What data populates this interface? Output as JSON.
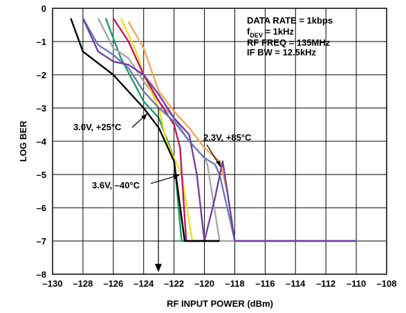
{
  "chart_data": {
    "type": "line",
    "xlabel": "RF INPUT POWER (dBm)",
    "ylabel": "LOG BER",
    "xlim": [
      -130,
      -108
    ],
    "ylim": [
      -8,
      0
    ],
    "x_ticks": [
      "–130",
      "–128",
      "–126",
      "–124",
      "–122",
      "–120",
      "–118",
      "–116",
      "–114",
      "–112",
      "–110",
      "–108"
    ],
    "y_ticks": [
      "0",
      "–1",
      "–2",
      "–3",
      "–4",
      "–5",
      "–6",
      "–7",
      "–8"
    ],
    "grid": true,
    "info_box": {
      "line1": "DATA RATE = 1kbps",
      "line2_main": "f",
      "line2_sub": "DEV",
      "line2_rest": " = 1kHz",
      "line3": "RF FREQ = 135MHz",
      "line4": "IF BW = 12.5kHz"
    },
    "annotations": [
      {
        "text": "3.0V, +25°C"
      },
      {
        "text": "2.3V, +85°C"
      },
      {
        "text": "3.6V, –40°C"
      }
    ],
    "series": [
      {
        "color": "#1a9a6a",
        "x": [
          -126.5,
          -125.5,
          -124,
          -123,
          -122,
          -121.5,
          -120
        ],
        "y": [
          -0.3,
          -1.5,
          -2.8,
          -3.3,
          -4.5,
          -7,
          -7
        ]
      },
      {
        "color": "#f4a460",
        "x": [
          -125,
          -124,
          -123,
          -122,
          -121,
          -120,
          -119,
          -118.5,
          -118
        ],
        "y": [
          -0.4,
          -1.2,
          -2.5,
          -3.1,
          -3.6,
          -4.2,
          -4.6,
          -5.5,
          -7
        ]
      },
      {
        "color": "#a8a8a8",
        "x": [
          -127,
          -126,
          -125,
          -124,
          -123,
          -122,
          -121,
          -120,
          -119.8,
          -119,
          -118,
          -110
        ],
        "y": [
          -0.3,
          -1.2,
          -1.5,
          -2.2,
          -2.8,
          -3.3,
          -4.0,
          -4.5,
          -4.7,
          -7,
          -7,
          -7
        ]
      },
      {
        "color": "#f0e020",
        "x": [
          -125.5,
          -124.5,
          -124,
          -123.5,
          -123,
          -122.5,
          -121.5,
          -120.8
        ],
        "y": [
          -0.3,
          -1.3,
          -2.0,
          -2.5,
          -3.0,
          -4.0,
          -5.0,
          -7
        ]
      },
      {
        "color": "#c0185a",
        "x": [
          -126,
          -125,
          -124,
          -123,
          -122,
          -121.6,
          -121.2,
          -119
        ],
        "y": [
          -0.3,
          -1.0,
          -2.0,
          -2.8,
          -3.5,
          -4.2,
          -7,
          -7
        ]
      },
      {
        "color": "#6a7ab0",
        "x": [
          -128,
          -127,
          -126,
          -125,
          -124,
          -123,
          -122,
          -121,
          -120,
          -119.3,
          -119,
          -118,
          -110
        ],
        "y": [
          -0.3,
          -1.1,
          -1.4,
          -1.8,
          -2.5,
          -3.0,
          -3.4,
          -4.0,
          -4.5,
          -4.7,
          -5.0,
          -7,
          -7
        ]
      },
      {
        "color": "#7040a0",
        "x": [
          -128,
          -127,
          -126,
          -125,
          -124,
          -123,
          -122,
          -121,
          -120.5,
          -120,
          -119.3,
          -118.8,
          -118,
          -110
        ],
        "y": [
          -0.3,
          -1.3,
          -1.6,
          -1.7,
          -2.0,
          -2.6,
          -3.3,
          -3.8,
          -5.0,
          -7,
          -5.7,
          -4.6,
          -7,
          -7
        ]
      },
      {
        "color": "#000000",
        "x": [
          -128.8,
          -128,
          -126,
          -124,
          -123,
          -122,
          -121.3,
          -120,
          -119
        ],
        "y": [
          -0.3,
          -1.3,
          -2.0,
          -3.0,
          -3.6,
          -4.6,
          -7,
          -7,
          -7
        ]
      }
    ]
  }
}
